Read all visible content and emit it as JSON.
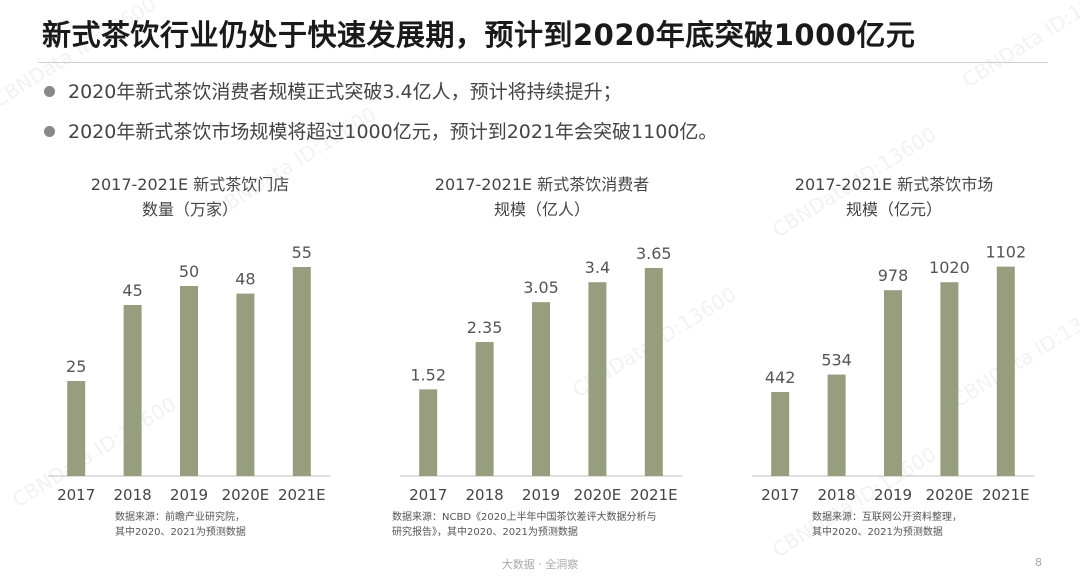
{
  "title": "新式茶饮行业仍处于快速发展期，预计到2020年底突破1000亿元",
  "bullets": [
    "2020年新式茶饮消费者规模正式突破3.4亿人，预计将持续提升；",
    "2020年新式茶饮市场规模将超过1000亿元，预计到2021年会突破1100亿。"
  ],
  "watermark": "CBNData ID:13600",
  "colors": {
    "bar": "#979e7e",
    "axis": "#bfbfbf"
  },
  "chart_data": [
    {
      "type": "bar",
      "title_lines": [
        "2017-2021E 新式茶饮门店",
        "数量（万家）"
      ],
      "categories": [
        "2017",
        "2018",
        "2019",
        "2020E",
        "2021E"
      ],
      "values": [
        25,
        45,
        50,
        48,
        55
      ],
      "value_labels": [
        "25",
        "45",
        "50",
        "48",
        "55"
      ],
      "ylim": [
        0,
        60
      ],
      "source_lines": [
        "数据来源：前瞻产业研究院，",
        "其中2020、2021为预测数据"
      ]
    },
    {
      "type": "bar",
      "title_lines": [
        "2017-2021E 新式茶饮消费者",
        "规模（亿人）"
      ],
      "categories": [
        "2017",
        "2018",
        "2019",
        "2020E",
        "2021E"
      ],
      "values": [
        1.52,
        2.35,
        3.05,
        3.4,
        3.65
      ],
      "value_labels": [
        "1.52",
        "2.35",
        "3.05",
        "3.4",
        "3.65"
      ],
      "ylim": [
        0,
        4
      ],
      "source_lines": [
        "数据来源：NCBD《2020上半年中国茶饮差评大数据分析与",
        "研究报告》，其中2020、2021为预测数据"
      ]
    },
    {
      "type": "bar",
      "title_lines": [
        "2017-2021E 新式茶饮市场",
        "规模（亿元）"
      ],
      "categories": [
        "2017",
        "2018",
        "2019",
        "2020E",
        "2021E"
      ],
      "values": [
        442,
        534,
        978,
        1020,
        1102
      ],
      "value_labels": [
        "442",
        "534",
        "978",
        "1020",
        "1102"
      ],
      "ylim": [
        0,
        1200
      ],
      "source_lines": [
        "数据来源：互联网公开资料整理，",
        "其中2020、2021为预测数据"
      ]
    }
  ],
  "footer": "大数据 · 全洞察",
  "page_number": "8"
}
